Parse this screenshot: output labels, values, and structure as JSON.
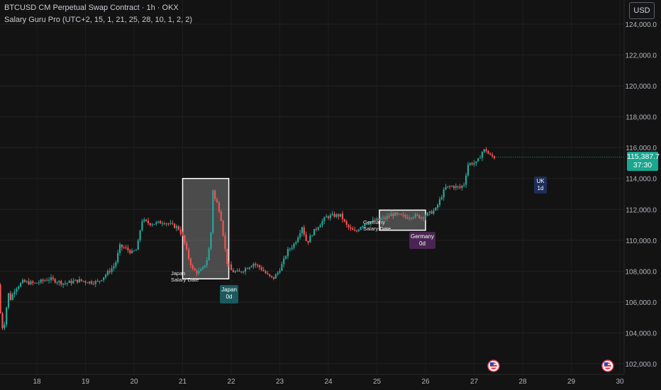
{
  "header": {
    "title": "BTCUSD CM Perpetual Swap Contract · 1h · OKX",
    "indicator": "Salary Guru Pro (UTC+2, 15, 1, 21, 25, 28, 10, 1, 2, 2)"
  },
  "currency_button": "USD",
  "last_price": {
    "price": "115,387.7",
    "countdown": "37:30"
  },
  "annotations": {
    "japan_box_label": "Japan\nSalary Date",
    "japan_tag": "Japan\n0d",
    "germany_box_label": "Germany\nSalary Date",
    "germany_tag": "Germany\n0d",
    "uk_tag": "UK\n1d"
  },
  "colors": {
    "background": "#131313",
    "up": "#26a69a",
    "down": "#ef5350",
    "price_tag": "#1aa68f",
    "japan_tag": "#1a5a5c",
    "germany_tag": "#4a2553",
    "uk_tag": "#1e2e5a"
  },
  "chart_data": {
    "type": "candlestick",
    "interval": "1h",
    "x_ticks": [
      "18",
      "19",
      "20",
      "21",
      "22",
      "23",
      "24",
      "25",
      "26",
      "27",
      "28",
      "29",
      "30"
    ],
    "y_ticks": [
      "124,000.0",
      "122,000.0",
      "120,000.0",
      "118,000.0",
      "116,000.0",
      "114,000.0",
      "112,000.0",
      "110,000.0",
      "108,000.0",
      "106,000.0",
      "104,000.0",
      "102,000.0"
    ],
    "ylim": [
      101700,
      124800
    ],
    "xlim_days": [
      17.25,
      30.1
    ],
    "grid": true,
    "path": [
      [
        17.25,
        107100
      ],
      [
        17.3,
        104900
      ],
      [
        17.35,
        104100
      ],
      [
        17.4,
        105200
      ],
      [
        17.45,
        106600
      ],
      [
        17.5,
        106200
      ],
      [
        17.6,
        106900
      ],
      [
        17.75,
        107300
      ],
      [
        18.0,
        107200
      ],
      [
        18.3,
        107500
      ],
      [
        18.6,
        107200
      ],
      [
        18.9,
        107400
      ],
      [
        19.1,
        107300
      ],
      [
        19.3,
        107300
      ],
      [
        19.5,
        107900
      ],
      [
        19.65,
        108400
      ],
      [
        19.75,
        109600
      ],
      [
        19.85,
        109500
      ],
      [
        20.0,
        109200
      ],
      [
        20.1,
        109400
      ],
      [
        20.2,
        111300
      ],
      [
        20.35,
        111100
      ],
      [
        20.5,
        111100
      ],
      [
        20.65,
        111200
      ],
      [
        20.8,
        111000
      ],
      [
        20.95,
        110800
      ],
      [
        21.05,
        110200
      ],
      [
        21.15,
        109000
      ],
      [
        21.25,
        108100
      ],
      [
        21.35,
        107900
      ],
      [
        21.45,
        108100
      ],
      [
        21.55,
        108800
      ],
      [
        21.62,
        110100
      ],
      [
        21.66,
        113400
      ],
      [
        21.7,
        112700
      ],
      [
        21.75,
        112400
      ],
      [
        21.82,
        111700
      ],
      [
        21.88,
        110300
      ],
      [
        21.95,
        108600
      ],
      [
        22.05,
        108000
      ],
      [
        22.2,
        107900
      ],
      [
        22.35,
        108200
      ],
      [
        22.5,
        108500
      ],
      [
        22.65,
        108200
      ],
      [
        22.8,
        107700
      ],
      [
        22.9,
        107500
      ],
      [
        23.0,
        107900
      ],
      [
        23.1,
        108500
      ],
      [
        23.2,
        109300
      ],
      [
        23.35,
        109800
      ],
      [
        23.5,
        110900
      ],
      [
        23.6,
        109800
      ],
      [
        23.7,
        110400
      ],
      [
        23.85,
        111000
      ],
      [
        24.0,
        111500
      ],
      [
        24.15,
        111600
      ],
      [
        24.3,
        111600
      ],
      [
        24.4,
        111000
      ],
      [
        24.5,
        110700
      ],
      [
        24.6,
        110500
      ],
      [
        24.7,
        110900
      ],
      [
        24.8,
        111100
      ],
      [
        24.9,
        111200
      ],
      [
        25.05,
        111300
      ],
      [
        25.2,
        111400
      ],
      [
        25.35,
        111700
      ],
      [
        25.5,
        111600
      ],
      [
        25.65,
        111500
      ],
      [
        25.8,
        111600
      ],
      [
        25.95,
        111500
      ],
      [
        26.1,
        111700
      ],
      [
        26.25,
        112000
      ],
      [
        26.35,
        112700
      ],
      [
        26.45,
        113400
      ],
      [
        26.6,
        113500
      ],
      [
        26.75,
        113400
      ],
      [
        26.85,
        113700
      ],
      [
        26.9,
        114900
      ],
      [
        27.0,
        115000
      ],
      [
        27.1,
        115000
      ],
      [
        27.2,
        115700
      ],
      [
        27.28,
        115900
      ],
      [
        27.35,
        115500
      ],
      [
        27.45,
        115387.7
      ]
    ],
    "annotation_boxes": [
      {
        "name": "japan-salary-box",
        "day_start": 21.0,
        "day_end": 21.95,
        "price_low": 107500,
        "price_high": 114000,
        "fill": true
      },
      {
        "name": "germany-salary-box",
        "day_start": 25.05,
        "day_end": 26.0,
        "price_low": 110650,
        "price_high": 111950,
        "fill": true
      }
    ],
    "tags": [
      {
        "name": "japan-tag",
        "day": 21.95,
        "price": 106700,
        "color": "#1a5a5c",
        "pointer": "up"
      },
      {
        "name": "germany-tag",
        "day": 26.0,
        "price": 110050,
        "color": "#4a2553",
        "pointer": "up"
      },
      {
        "name": "uk-tag",
        "day": 28.45,
        "price": 113700,
        "color": "#1e2e5a",
        "pointer": "up"
      }
    ],
    "event_markers": [
      {
        "name": "us-flag-event",
        "day": 27.4
      },
      {
        "name": "us-flag-event",
        "day": 29.75
      }
    ]
  }
}
